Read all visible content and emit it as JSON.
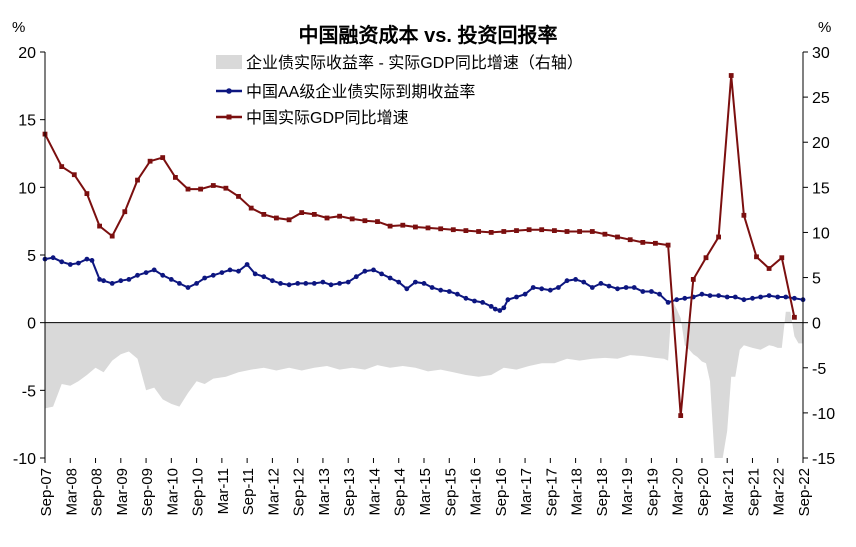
{
  "chart_data": {
    "type": "line",
    "title": "中国融资成本 vs. 投资回报率",
    "left_axis": {
      "unit": "%",
      "range": [
        -10,
        20
      ],
      "ticks": [
        -10,
        -5,
        0,
        5,
        10,
        15,
        20
      ]
    },
    "right_axis": {
      "unit": "%",
      "range": [
        -15,
        30
      ],
      "ticks": [
        -15,
        -10,
        -5,
        0,
        5,
        10,
        15,
        20,
        25,
        30
      ]
    },
    "x_tick_labels": [
      "Sep-07",
      "Mar-08",
      "Sep-08",
      "Mar-09",
      "Sep-09",
      "Mar-10",
      "Sep-10",
      "Mar-11",
      "Sep-11",
      "Mar-12",
      "Sep-12",
      "Mar-13",
      "Sep-13",
      "Mar-14",
      "Sep-14",
      "Mar-15",
      "Sep-15",
      "Mar-16",
      "Sep-16",
      "Mar-17",
      "Sep-17",
      "Mar-18",
      "Sep-18",
      "Mar-19",
      "Sep-19",
      "Mar-20",
      "Sep-20",
      "Mar-21",
      "Sep-21",
      "Mar-22",
      "Sep-22"
    ],
    "series": [
      {
        "name": "企业债实际收益率 - 实际GDP同比增速（右轴）",
        "kind": "area",
        "axis": "right",
        "color": "#d9d9d9",
        "x": [
          2007.67,
          2007.83,
          2008.0,
          2008.17,
          2008.33,
          2008.5,
          2008.67,
          2008.83,
          2009.0,
          2009.17,
          2009.33,
          2009.5,
          2009.67,
          2009.83,
          2010.0,
          2010.17,
          2010.33,
          2010.5,
          2010.67,
          2010.83,
          2011.0,
          2011.25,
          2011.5,
          2011.75,
          2012.0,
          2012.25,
          2012.5,
          2012.75,
          2013.0,
          2013.25,
          2013.5,
          2013.75,
          2014.0,
          2014.25,
          2014.5,
          2014.75,
          2015.0,
          2015.25,
          2015.5,
          2015.75,
          2016.0,
          2016.25,
          2016.5,
          2016.75,
          2017.0,
          2017.25,
          2017.5,
          2017.75,
          2018.0,
          2018.25,
          2018.5,
          2018.75,
          2019.0,
          2019.25,
          2019.5,
          2019.75,
          2019.92,
          2020.0,
          2020.08,
          2020.17,
          2020.25,
          2020.33,
          2020.42,
          2020.5,
          2020.58,
          2020.67,
          2020.75,
          2020.83,
          2020.92,
          2021.0,
          2021.08,
          2021.17,
          2021.25,
          2021.33,
          2021.42,
          2021.5,
          2021.67,
          2021.83,
          2022.0,
          2022.08,
          2022.17,
          2022.25,
          2022.33,
          2022.42,
          2022.5,
          2022.58,
          2022.67
        ],
        "values": [
          -9.5,
          -9.3,
          -6.8,
          -7.0,
          -6.5,
          -5.8,
          -5.0,
          -5.5,
          -4.2,
          -3.5,
          -3.2,
          -4.0,
          -7.5,
          -7.2,
          -8.5,
          -9.0,
          -9.3,
          -7.8,
          -6.5,
          -6.8,
          -6.2,
          -6.0,
          -5.5,
          -5.2,
          -5.0,
          -5.3,
          -5.0,
          -5.3,
          -5.0,
          -4.8,
          -5.2,
          -5.0,
          -5.2,
          -4.7,
          -5.0,
          -4.8,
          -5.0,
          -5.4,
          -5.2,
          -5.5,
          -5.8,
          -6.0,
          -5.8,
          -5.0,
          -5.2,
          -4.8,
          -4.5,
          -4.5,
          -4.0,
          -4.2,
          -4.0,
          -3.9,
          -4.0,
          -3.6,
          -3.7,
          -3.9,
          -4.0,
          -4.2,
          2.5,
          1.5,
          0.5,
          -2.5,
          -3.0,
          -3.5,
          -3.8,
          -4.3,
          -4.5,
          -6.5,
          -15.0,
          -15.0,
          -15.0,
          -12.0,
          -6.0,
          -6.0,
          -3.0,
          -2.5,
          -2.8,
          -3.0,
          -2.5,
          -2.6,
          -2.8,
          -2.8,
          1.2,
          1.2,
          -1.5,
          -2.3,
          -2.3
        ]
      },
      {
        "name": "中国AA级企业债实际到期收益率",
        "kind": "line",
        "axis": "left",
        "color": "#0d1680",
        "marker": "circle",
        "x": [
          2007.67,
          2007.83,
          2008.0,
          2008.17,
          2008.33,
          2008.5,
          2008.6,
          2008.75,
          2008.83,
          2009.0,
          2009.17,
          2009.33,
          2009.5,
          2009.67,
          2009.83,
          2010.0,
          2010.17,
          2010.33,
          2010.5,
          2010.67,
          2010.83,
          2011.0,
          2011.17,
          2011.33,
          2011.5,
          2011.67,
          2011.83,
          2012.0,
          2012.17,
          2012.33,
          2012.5,
          2012.67,
          2012.83,
          2013.0,
          2013.17,
          2013.33,
          2013.5,
          2013.67,
          2013.83,
          2014.0,
          2014.17,
          2014.33,
          2014.5,
          2014.67,
          2014.83,
          2015.0,
          2015.17,
          2015.33,
          2015.5,
          2015.67,
          2015.83,
          2016.0,
          2016.17,
          2016.33,
          2016.5,
          2016.58,
          2016.67,
          2016.75,
          2016.83,
          2017.0,
          2017.17,
          2017.33,
          2017.5,
          2017.67,
          2017.83,
          2018.0,
          2018.17,
          2018.33,
          2018.5,
          2018.67,
          2018.83,
          2019.0,
          2019.17,
          2019.33,
          2019.5,
          2019.67,
          2019.83,
          2020.0,
          2020.17,
          2020.33,
          2020.5,
          2020.67,
          2020.83,
          2021.0,
          2021.17,
          2021.33,
          2021.5,
          2021.67,
          2021.83,
          2022.0,
          2022.17,
          2022.33,
          2022.5,
          2022.67
        ],
        "values": [
          4.7,
          4.8,
          4.5,
          4.3,
          4.4,
          4.7,
          4.6,
          3.2,
          3.1,
          2.9,
          3.1,
          3.2,
          3.5,
          3.7,
          3.9,
          3.5,
          3.2,
          2.9,
          2.6,
          2.9,
          3.3,
          3.5,
          3.7,
          3.9,
          3.8,
          4.3,
          3.6,
          3.4,
          3.1,
          2.9,
          2.8,
          2.9,
          2.9,
          2.9,
          3.0,
          2.8,
          2.9,
          3.0,
          3.4,
          3.8,
          3.9,
          3.6,
          3.3,
          3.0,
          2.5,
          3.0,
          2.9,
          2.6,
          2.4,
          2.3,
          2.1,
          1.8,
          1.6,
          1.5,
          1.2,
          1.0,
          0.9,
          1.1,
          1.7,
          1.9,
          2.1,
          2.6,
          2.5,
          2.4,
          2.6,
          3.1,
          3.2,
          3.0,
          2.6,
          2.9,
          2.7,
          2.5,
          2.6,
          2.6,
          2.3,
          2.3,
          2.1,
          1.5,
          1.7,
          1.8,
          1.9,
          2.1,
          2.0,
          2.0,
          1.9,
          1.9,
          1.7,
          1.8,
          1.9,
          2.0,
          1.9,
          1.9,
          1.8,
          1.7
        ]
      },
      {
        "name": "中国实际GDP同比增速",
        "kind": "line",
        "axis": "right",
        "color": "#7b0f0f",
        "marker": "square",
        "x": [
          2007.67,
          2008.0,
          2008.25,
          2008.5,
          2008.75,
          2009.0,
          2009.25,
          2009.5,
          2009.75,
          2010.0,
          2010.25,
          2010.5,
          2010.75,
          2011.0,
          2011.25,
          2011.5,
          2011.75,
          2012.0,
          2012.25,
          2012.5,
          2012.75,
          2013.0,
          2013.25,
          2013.5,
          2013.75,
          2014.0,
          2014.25,
          2014.5,
          2014.75,
          2015.0,
          2015.25,
          2015.5,
          2015.75,
          2016.0,
          2016.25,
          2016.5,
          2016.75,
          2017.0,
          2017.25,
          2017.5,
          2017.75,
          2018.0,
          2018.25,
          2018.5,
          2018.75,
          2019.0,
          2019.25,
          2019.5,
          2019.75,
          2020.0,
          2020.25,
          2020.5,
          2020.75,
          2021.0,
          2021.25,
          2021.5,
          2021.75,
          2022.0,
          2022.25,
          2022.5
        ],
        "values": [
          20.9,
          17.3,
          16.4,
          14.3,
          10.7,
          9.6,
          12.3,
          15.8,
          17.9,
          18.3,
          16.1,
          14.8,
          14.8,
          15.2,
          14.9,
          14.0,
          12.7,
          12.0,
          11.6,
          11.4,
          12.2,
          12.0,
          11.6,
          11.8,
          11.5,
          11.3,
          11.2,
          10.7,
          10.8,
          10.6,
          10.5,
          10.4,
          10.3,
          10.2,
          10.1,
          10.0,
          10.1,
          10.2,
          10.3,
          10.3,
          10.2,
          10.1,
          10.1,
          10.1,
          9.8,
          9.5,
          9.2,
          8.9,
          8.8,
          8.6,
          -10.3,
          4.8,
          7.2,
          9.5,
          27.4,
          11.9,
          7.3,
          6.0,
          7.2,
          0.6
        ]
      }
    ]
  }
}
